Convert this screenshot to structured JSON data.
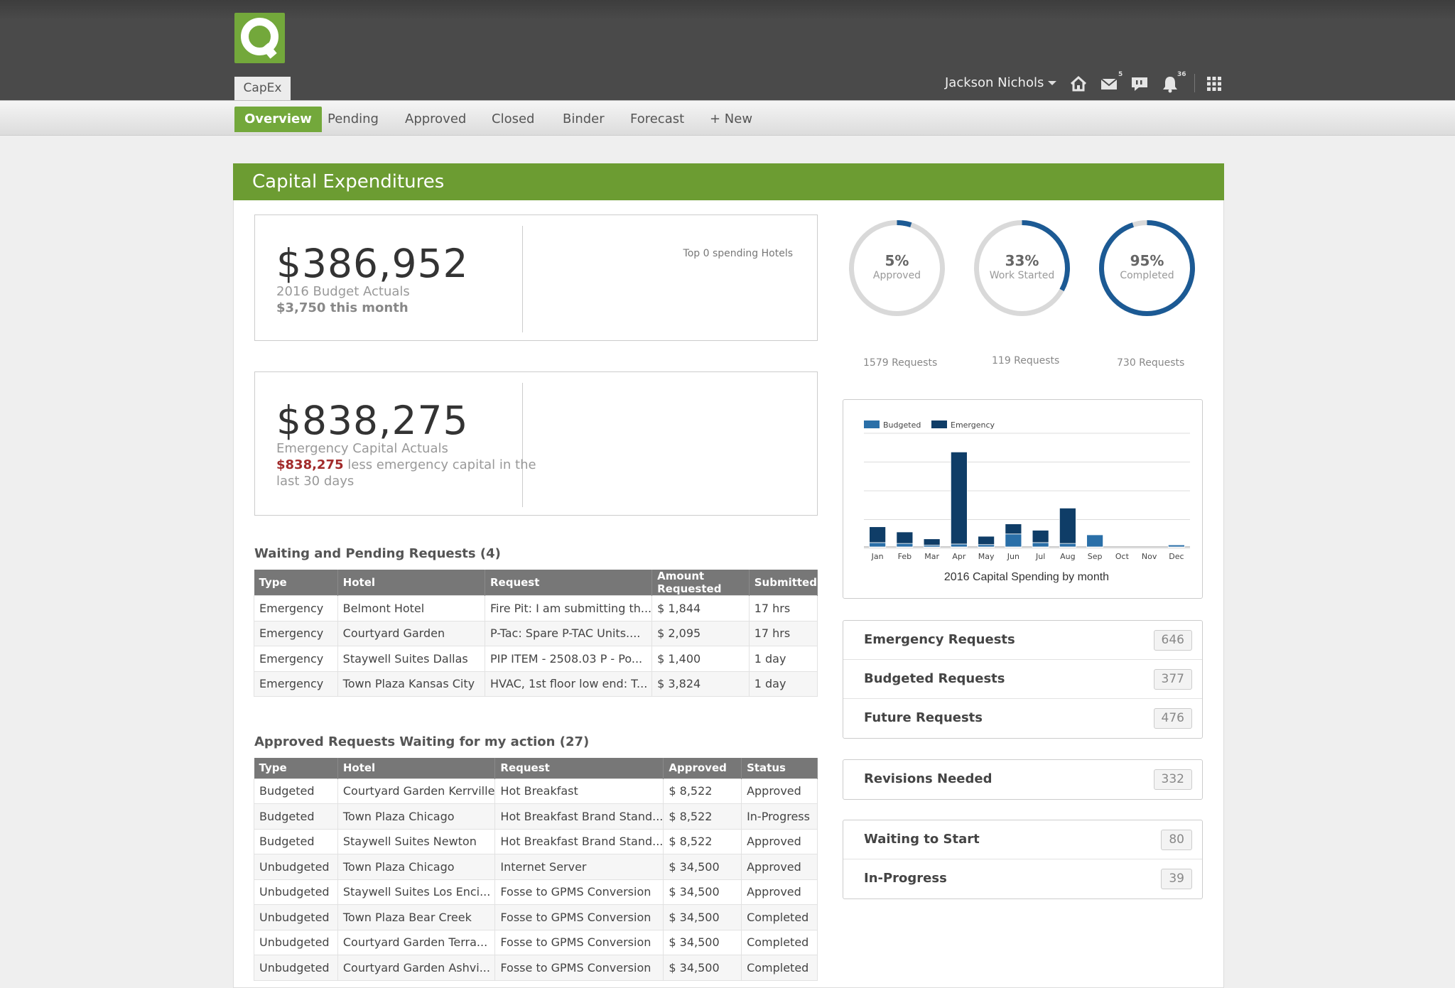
{
  "app": {
    "tab": "CapEx"
  },
  "header": {
    "user": "Jackson Nichols",
    "mail_count": "5",
    "notif_count": "36"
  },
  "nav": {
    "items": [
      "Overview",
      "Pending",
      "Approved",
      "Closed",
      "Binder",
      "Forecast",
      "+ New"
    ]
  },
  "page": {
    "title": "Capital Expenditures"
  },
  "kpi1": {
    "amount": "$386,952",
    "label": "2016 Budget Actuals",
    "month": "$3,750 this month",
    "top_spending": "Top 0 spending Hotels"
  },
  "kpi2": {
    "amount": "$838,275",
    "label": "Emergency Capital Actuals",
    "highlight": "$838,275",
    "note1": " less emergency capital in the",
    "note2": "last 30 days"
  },
  "donuts": [
    {
      "pct": "5%",
      "label": "Approved",
      "requests": "1579 Requests",
      "fraction": 0.05
    },
    {
      "pct": "33%",
      "label": "Work Started",
      "requests": "119 Requests",
      "fraction": 0.33
    },
    {
      "pct": "95%",
      "label": "Completed",
      "requests": "730 Requests",
      "fraction": 0.95
    }
  ],
  "chart_data": {
    "type": "bar",
    "stacked": true,
    "title": "2016 Capital Spending by month",
    "categories": [
      "Jan",
      "Feb",
      "Mar",
      "Apr",
      "May",
      "Jun",
      "Jul",
      "Aug",
      "Sep",
      "Oct",
      "Nov",
      "Dec"
    ],
    "series": [
      {
        "name": "Budgeted",
        "color": "#2a6fa8",
        "values": [
          1.5,
          1.2,
          0.6,
          1.0,
          0.8,
          4.5,
          1.5,
          1.2,
          4.2,
          0,
          0,
          0.7
        ]
      },
      {
        "name": "Emergency",
        "color": "#0f3d67",
        "values": [
          5.5,
          4.0,
          2.2,
          32.0,
          2.9,
          3.5,
          4.3,
          12.3,
          0,
          0,
          0,
          0
        ]
      }
    ],
    "ylim": [
      0,
      40
    ],
    "grid": true,
    "legend": "top-left"
  },
  "pending": {
    "title": "Waiting and Pending Requests (4)",
    "columns": [
      "Type",
      "Hotel",
      "Request",
      "Amount Requested",
      "Submitted"
    ],
    "rows": [
      [
        "Emergency",
        "Belmont Hotel",
        "Fire Pit: I am submitting th...",
        "$ 1,844",
        "17 hrs"
      ],
      [
        "Emergency",
        "Courtyard Garden",
        "P-Tac: Spare P-TAC Units....",
        "$ 2,095",
        "17 hrs"
      ],
      [
        "Emergency",
        "Staywell Suites Dallas",
        "PIP ITEM - 2508.03 P - Po...",
        "$ 1,400",
        "1 day"
      ],
      [
        "Emergency",
        "Town Plaza Kansas City",
        "HVAC, 1st floor low end: T...",
        "$ 3,824",
        "1 day"
      ]
    ]
  },
  "approved": {
    "title": "Approved Requests Waiting for my action (27)",
    "columns": [
      "Type",
      "Hotel",
      "Request",
      "Approved",
      "Status"
    ],
    "rows": [
      [
        "Budgeted",
        "Courtyard Garden Kerrville",
        "Hot Breakfast",
        "$ 8,522",
        "Approved"
      ],
      [
        "Budgeted",
        "Town Plaza Chicago",
        "Hot Breakfast Brand Stand...",
        "$ 8,522",
        "In-Progress"
      ],
      [
        "Budgeted",
        "Staywell Suites Newton",
        "Hot Breakfast Brand Stand...",
        "$ 8,522",
        "Approved"
      ],
      [
        "Unbudgeted",
        "Town Plaza Chicago",
        "Internet Server",
        "$ 34,500",
        "Approved"
      ],
      [
        "Unbudgeted",
        "Staywell Suites Los Enci...",
        "Fosse to GPMS Conversion",
        "$ 34,500",
        "Approved"
      ],
      [
        "Unbudgeted",
        "Town Plaza Bear Creek",
        "Fosse to GPMS Conversion",
        "$ 34,500",
        "Completed"
      ],
      [
        "Unbudgeted",
        "Courtyard Garden Terra...",
        "Fosse to GPMS Conversion",
        "$ 34,500",
        "Completed"
      ],
      [
        "Unbudgeted",
        "Courtyard Garden Ashvi...",
        "Fosse to GPMS Conversion",
        "$ 34,500",
        "Completed"
      ]
    ]
  },
  "lists": {
    "group1": [
      {
        "label": "Emergency Requests",
        "count": "646"
      },
      {
        "label": "Budgeted Requests",
        "count": "377"
      },
      {
        "label": "Future Requests",
        "count": "476"
      }
    ],
    "group2": [
      {
        "label": "Revisions Needed",
        "count": "332"
      }
    ],
    "group3": [
      {
        "label": "Waiting to Start",
        "count": "80"
      },
      {
        "label": "In-Progress",
        "count": "39"
      }
    ]
  }
}
